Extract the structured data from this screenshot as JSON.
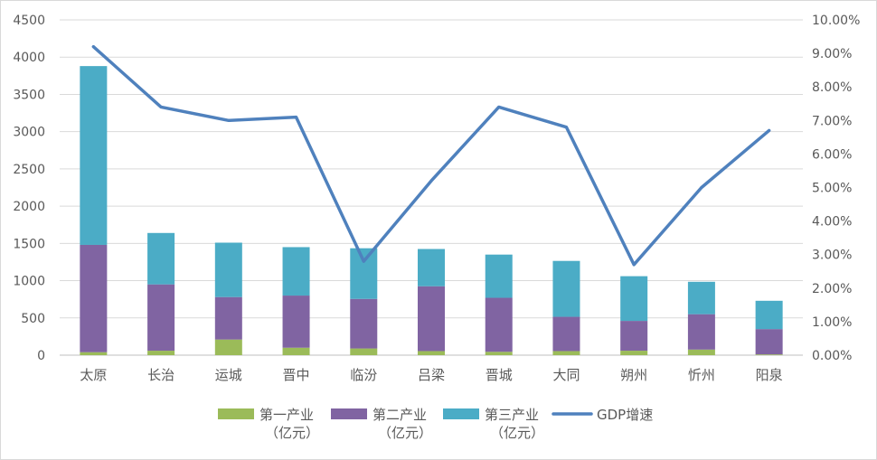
{
  "chart_data": {
    "type": "bar",
    "stacked": true,
    "categories": [
      "太原",
      "长治",
      "运城",
      "晋中",
      "临汾",
      "吕梁",
      "晋城",
      "大同",
      "朔州",
      "忻州",
      "阳泉"
    ],
    "series": [
      {
        "name": "第一产业（亿元）",
        "color": "#9bbb59",
        "values": [
          40,
          60,
          210,
          100,
          90,
          55,
          45,
          55,
          60,
          75,
          10
        ]
      },
      {
        "name": "第二产业（亿元）",
        "color": "#8064a2",
        "values": [
          1440,
          890,
          570,
          700,
          665,
          870,
          725,
          460,
          400,
          475,
          340
        ]
      },
      {
        "name": "第三产业（亿元）",
        "color": "#4bacc6",
        "values": [
          2400,
          690,
          730,
          650,
          680,
          500,
          580,
          750,
          600,
          435,
          380
        ]
      }
    ],
    "line_series": {
      "name": "GDP增速",
      "color": "#4f81bd",
      "axis": "right",
      "values": [
        9.2,
        7.4,
        7.0,
        7.1,
        2.8,
        5.2,
        7.4,
        6.8,
        2.7,
        5.0,
        6.7
      ]
    },
    "y_left": {
      "min": 0,
      "max": 4500,
      "step": 500,
      "tick_labels": [
        "0",
        "500",
        "1000",
        "1500",
        "2000",
        "2500",
        "3000",
        "3500",
        "4000",
        "4500"
      ]
    },
    "y_right": {
      "min": 0,
      "max": 10,
      "step": 1,
      "tick_labels": [
        "0.00%",
        "1.00%",
        "2.00%",
        "3.00%",
        "4.00%",
        "5.00%",
        "6.00%",
        "7.00%",
        "8.00%",
        "9.00%",
        "10.00%"
      ]
    },
    "grid": true,
    "legend_position": "bottom",
    "legend": [
      {
        "line1": "第一产业",
        "line2": "（亿元）",
        "color": "#9bbb59",
        "kind": "box"
      },
      {
        "line1": "第二产业",
        "line2": "（亿元）",
        "color": "#8064a2",
        "kind": "box"
      },
      {
        "line1": "第三产业",
        "line2": "（亿元）",
        "color": "#4bacc6",
        "kind": "box"
      },
      {
        "line1": "GDP增速",
        "line2": "",
        "color": "#4f81bd",
        "kind": "line"
      }
    ]
  }
}
